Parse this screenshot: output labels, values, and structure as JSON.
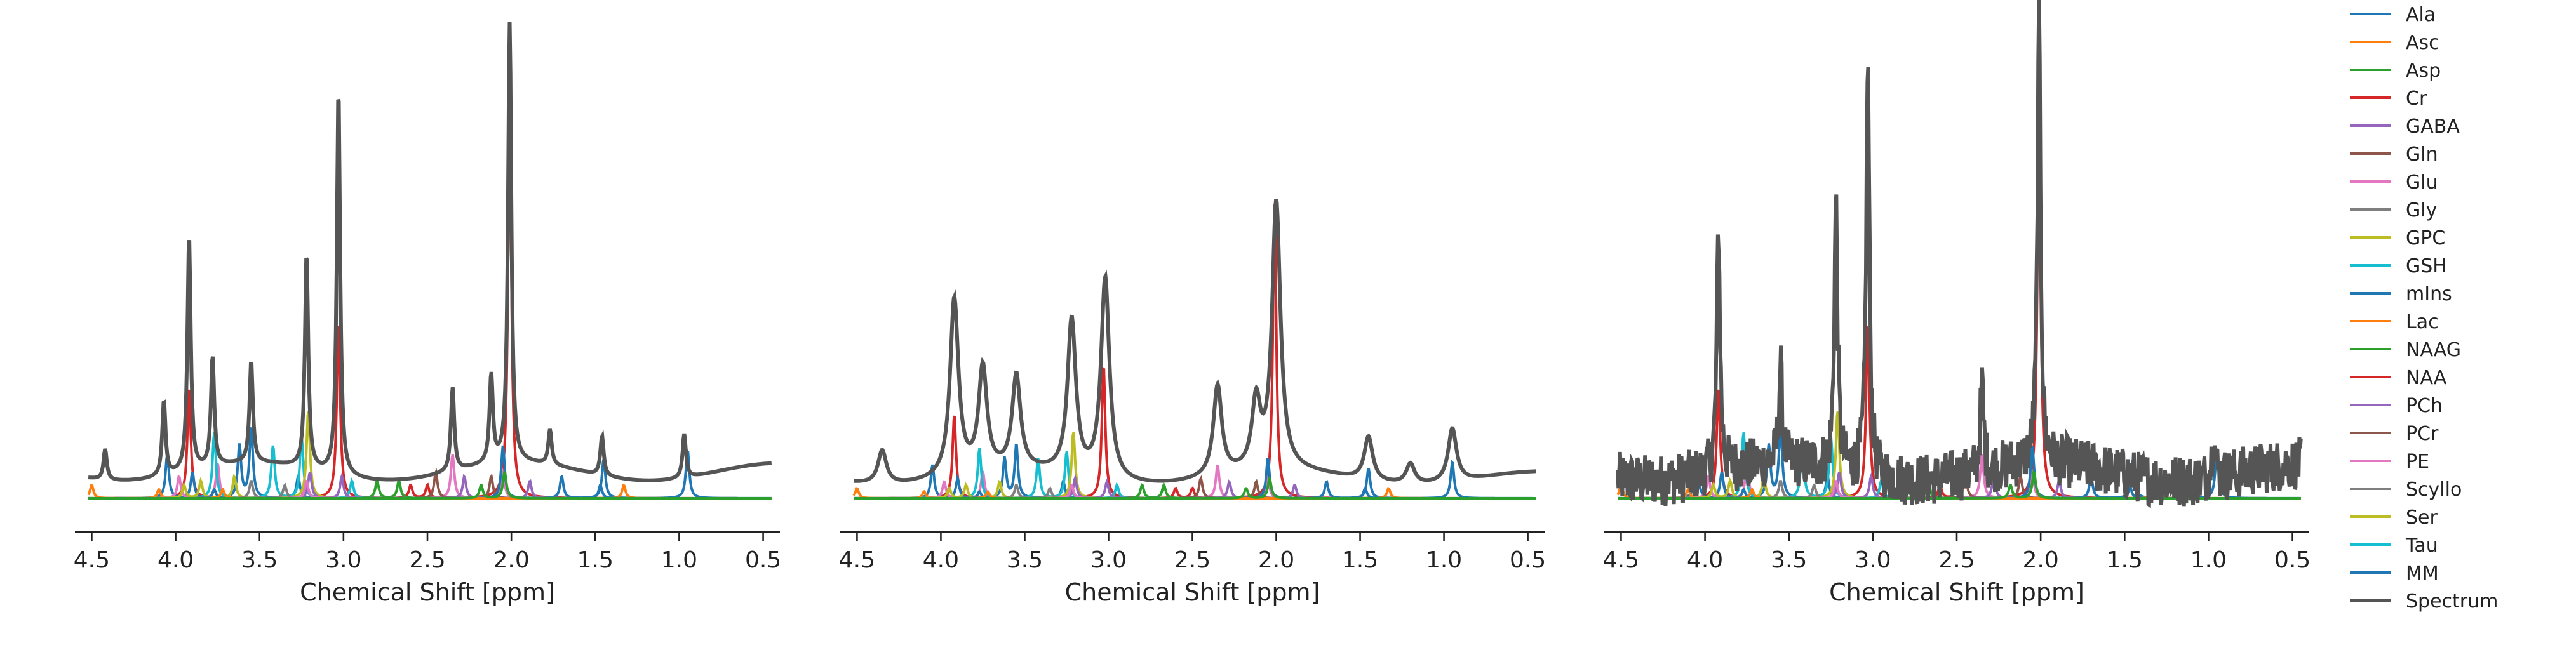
{
  "chart_data": {
    "type": "line",
    "panel_count": 3,
    "xlabel": "Chemical Shift [ppm]",
    "xlim": [
      4.6,
      0.4
    ],
    "x_ticks": [
      4.5,
      4.0,
      3.5,
      3.0,
      2.5,
      2.0,
      1.5,
      1.0,
      0.5
    ],
    "x_tick_labels": [
      "4.5",
      "4.0",
      "3.5",
      "3.0",
      "2.5",
      "2.0",
      "1.5",
      "1.0",
      "0.5"
    ],
    "y_axis_visible": false,
    "legend_position": "right",
    "panels": [
      {
        "noise": 0.0,
        "spectrum": [
          {
            "ppm": 2.01,
            "height": 1.0
          },
          {
            "ppm": 3.03,
            "height": 0.88
          },
          {
            "ppm": 3.92,
            "height": 0.53
          },
          {
            "ppm": 3.22,
            "height": 0.49
          },
          {
            "ppm": 3.78,
            "height": 0.25
          },
          {
            "ppm": 3.55,
            "height": 0.23
          },
          {
            "ppm": 4.07,
            "height": 0.17
          },
          {
            "ppm": 2.35,
            "height": 0.19
          },
          {
            "ppm": 2.12,
            "height": 0.2
          },
          {
            "ppm": 0.97,
            "height": 0.1
          },
          {
            "ppm": 1.46,
            "height": 0.09
          },
          {
            "ppm": 1.77,
            "height": 0.08
          },
          {
            "ppm": 4.42,
            "height": 0.07
          }
        ]
      },
      {
        "noise": 0.0,
        "spectrum": [
          {
            "ppm": 2.0,
            "height": 0.8
          },
          {
            "ppm": 3.02,
            "height": 0.6
          },
          {
            "ppm": 3.92,
            "height": 0.53
          },
          {
            "ppm": 3.22,
            "height": 0.46
          },
          {
            "ppm": 3.75,
            "height": 0.31
          },
          {
            "ppm": 3.55,
            "height": 0.28
          },
          {
            "ppm": 2.35,
            "height": 0.27
          },
          {
            "ppm": 2.12,
            "height": 0.2
          },
          {
            "ppm": 0.95,
            "height": 0.16
          },
          {
            "ppm": 1.45,
            "height": 0.13
          },
          {
            "ppm": 4.35,
            "height": 0.1
          },
          {
            "ppm": 1.2,
            "height": 0.06
          }
        ]
      },
      {
        "noise": 0.12,
        "spectrum": [
          {
            "ppm": 2.01,
            "height": 1.0
          },
          {
            "ppm": 3.03,
            "height": 0.94
          },
          {
            "ppm": 3.92,
            "height": 0.55
          },
          {
            "ppm": 3.22,
            "height": 0.61
          },
          {
            "ppm": 3.55,
            "height": 0.22
          },
          {
            "ppm": 2.35,
            "height": 0.2
          },
          {
            "ppm": 0.97,
            "height": 0.1
          }
        ]
      }
    ],
    "series": [
      {
        "name": "Ala",
        "color": "#1f77b4"
      },
      {
        "name": "Asc",
        "color": "#ff7f0e"
      },
      {
        "name": "Asp",
        "color": "#2ca02c"
      },
      {
        "name": "Cr",
        "color": "#d62728"
      },
      {
        "name": "GABA",
        "color": "#9467bd"
      },
      {
        "name": "Gln",
        "color": "#8c564b"
      },
      {
        "name": "Glu",
        "color": "#e377c2"
      },
      {
        "name": "Gly",
        "color": "#7f7f7f"
      },
      {
        "name": "GPC",
        "color": "#bcbd22"
      },
      {
        "name": "GSH",
        "color": "#17becf"
      },
      {
        "name": "mIns",
        "color": "#1f77b4"
      },
      {
        "name": "Lac",
        "color": "#ff7f0e"
      },
      {
        "name": "NAAG",
        "color": "#2ca02c"
      },
      {
        "name": "NAA",
        "color": "#d62728"
      },
      {
        "name": "PCh",
        "color": "#9467bd"
      },
      {
        "name": "PCr",
        "color": "#8c564b"
      },
      {
        "name": "PE",
        "color": "#e377c2"
      },
      {
        "name": "Scyllo",
        "color": "#7f7f7f"
      },
      {
        "name": "Ser",
        "color": "#bcbd22"
      },
      {
        "name": "Tau",
        "color": "#17becf"
      },
      {
        "name": "MM",
        "color": "#1f77b4"
      },
      {
        "name": "Spectrum",
        "color": "#555555"
      }
    ],
    "components": [
      {
        "series": "Cr",
        "peaks": [
          [
            3.92,
            0.25
          ],
          [
            3.03,
            0.4
          ]
        ]
      },
      {
        "series": "NAA",
        "peaks": [
          [
            2.01,
            0.88
          ],
          [
            2.5,
            0.03
          ],
          [
            2.6,
            0.03
          ]
        ]
      },
      {
        "series": "mIns",
        "peaks": [
          [
            3.55,
            0.16
          ],
          [
            3.62,
            0.12
          ],
          [
            4.05,
            0.1
          ],
          [
            3.27,
            0.05
          ]
        ]
      },
      {
        "series": "Tau",
        "peaks": [
          [
            3.25,
            0.14
          ],
          [
            3.42,
            0.12
          ]
        ]
      },
      {
        "series": "GPC",
        "peaks": [
          [
            3.21,
            0.2
          ],
          [
            3.65,
            0.05
          ]
        ]
      },
      {
        "series": "PCh",
        "peaks": [
          [
            3.2,
            0.06
          ]
        ]
      },
      {
        "series": "Glu",
        "peaks": [
          [
            2.35,
            0.1
          ],
          [
            2.05,
            0.06
          ],
          [
            3.75,
            0.08
          ]
        ]
      },
      {
        "series": "Gln",
        "peaks": [
          [
            2.45,
            0.06
          ],
          [
            2.12,
            0.05
          ]
        ]
      },
      {
        "series": "GSH",
        "peaks": [
          [
            3.77,
            0.15
          ],
          [
            2.95,
            0.04
          ]
        ]
      },
      {
        "series": "MM",
        "peaks": [
          [
            2.05,
            0.12
          ],
          [
            1.45,
            0.09
          ],
          [
            0.95,
            0.11
          ],
          [
            3.9,
            0.06
          ],
          [
            1.7,
            0.05
          ]
        ]
      },
      {
        "series": "Lac",
        "peaks": [
          [
            1.33,
            0.03
          ],
          [
            4.1,
            0.02
          ]
        ]
      },
      {
        "series": "Asp",
        "peaks": [
          [
            2.8,
            0.04
          ],
          [
            2.67,
            0.04
          ]
        ]
      },
      {
        "series": "GABA",
        "peaks": [
          [
            2.28,
            0.05
          ],
          [
            3.01,
            0.05
          ],
          [
            1.89,
            0.04
          ]
        ]
      },
      {
        "series": "Scyllo",
        "peaks": [
          [
            3.35,
            0.03
          ]
        ]
      },
      {
        "series": "PE",
        "peaks": [
          [
            3.98,
            0.05
          ],
          [
            3.22,
            0.04
          ]
        ]
      },
      {
        "series": "Gly",
        "peaks": [
          [
            3.55,
            0.04
          ]
        ]
      },
      {
        "series": "Ser",
        "peaks": [
          [
            3.85,
            0.04
          ],
          [
            3.95,
            0.03
          ]
        ]
      },
      {
        "series": "Ala",
        "peaks": [
          [
            1.47,
            0.03
          ],
          [
            3.77,
            0.02
          ]
        ]
      },
      {
        "series": "Asc",
        "peaks": [
          [
            4.5,
            0.03
          ],
          [
            3.72,
            0.02
          ]
        ]
      },
      {
        "series": "NAAG",
        "peaks": [
          [
            2.04,
            0.06
          ],
          [
            2.18,
            0.03
          ]
        ]
      }
    ]
  }
}
